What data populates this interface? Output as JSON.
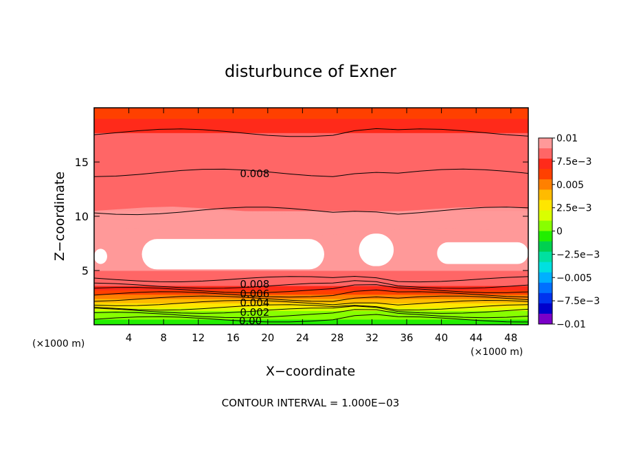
{
  "chart_data": {
    "type": "contour",
    "title": "disturbunce of Exner",
    "xlabel": "X−coordinate",
    "ylabel": "Z−coordinate",
    "x_unit_label_left": "(×1000 m)",
    "x_unit_label_right": "(×1000 m)",
    "xlim": [
      0,
      50
    ],
    "ylim": [
      0,
      20
    ],
    "x_ticks": [
      4,
      8,
      12,
      16,
      20,
      24,
      28,
      32,
      36,
      40,
      44,
      48
    ],
    "y_ticks": [
      5,
      10,
      15
    ],
    "contour_interval_text": "CONTOUR INTERVAL = 1.000E−03",
    "contour_labels": [
      {
        "value": "0.008",
        "x": 18.5,
        "z": 14.0
      },
      {
        "value": "0.008",
        "x": 18.5,
        "z": 3.8
      },
      {
        "value": "0.006",
        "x": 18.5,
        "z": 2.9
      },
      {
        "value": "0.004",
        "x": 18.5,
        "z": 2.1
      },
      {
        "value": "0.002",
        "x": 18.5,
        "z": 1.2
      },
      {
        "value": "0.00",
        "x": 18.0,
        "z": 0.4
      }
    ],
    "colorbar": {
      "labels": [
        "0.01",
        "7.5e−3",
        "0.005",
        "2.5e−3",
        "0",
        "−2.5e−3",
        "−0.005",
        "−7.5e−3",
        "−0.01"
      ],
      "colors": [
        "#ff9999",
        "#ff6666",
        "#ff2a1a",
        "#ff4000",
        "#ff8000",
        "#ffbb00",
        "#ffe600",
        "#d9ff00",
        "#88ff00",
        "#22ee00",
        "#00d050",
        "#00e0a0",
        "#00e0e0",
        "#00b0ff",
        "#0070ff",
        "#0033ee",
        "#0000cc",
        "#7a00c8"
      ]
    },
    "profile_level_bands": [
      {
        "z0": 0.0,
        "z1": 0.5,
        "level": 0.0
      },
      {
        "z0": 0.5,
        "z1": 0.9,
        "level": 0.0005
      },
      {
        "z0": 0.9,
        "z1": 1.3,
        "level": 0.001
      },
      {
        "z0": 1.3,
        "z1": 1.6,
        "level": 0.002
      },
      {
        "z0": 1.6,
        "z1": 2.0,
        "level": 0.003
      },
      {
        "z0": 2.0,
        "z1": 2.4,
        "level": 0.004
      },
      {
        "z0": 2.4,
        "z1": 2.8,
        "level": 0.005
      },
      {
        "z0": 2.8,
        "z1": 3.2,
        "level": 0.006
      },
      {
        "z0": 3.2,
        "z1": 3.6,
        "level": 0.007
      },
      {
        "z0": 3.6,
        "z1": 4.2,
        "level": 0.008
      },
      {
        "z0": 4.2,
        "z1": 5.0,
        "level": 0.0085
      },
      {
        "z0": 5.0,
        "z1": 8.5,
        "level": 0.0095
      },
      {
        "z0": 8.5,
        "z1": 10.5,
        "level": 0.009
      },
      {
        "z0": 10.5,
        "z1": 14.0,
        "level": 0.0085
      },
      {
        "z0": 14.0,
        "z1": 17.7,
        "level": 0.008
      },
      {
        "z0": 17.7,
        "z1": 19.0,
        "level": 0.007
      },
      {
        "z0": 19.0,
        "z1": 20.0,
        "level": 0.006
      }
    ],
    "high_value_regions": [
      {
        "x": [
          0,
          1.5
        ],
        "z": [
          5.6,
          7.0
        ]
      },
      {
        "x": [
          5.5,
          26.5
        ],
        "z": [
          5.1,
          7.9
        ]
      },
      {
        "x": [
          30.5,
          34.5
        ],
        "z": [
          5.4,
          8.4
        ]
      },
      {
        "x": [
          39.5,
          50
        ],
        "z": [
          5.6,
          7.6
        ]
      }
    ]
  }
}
